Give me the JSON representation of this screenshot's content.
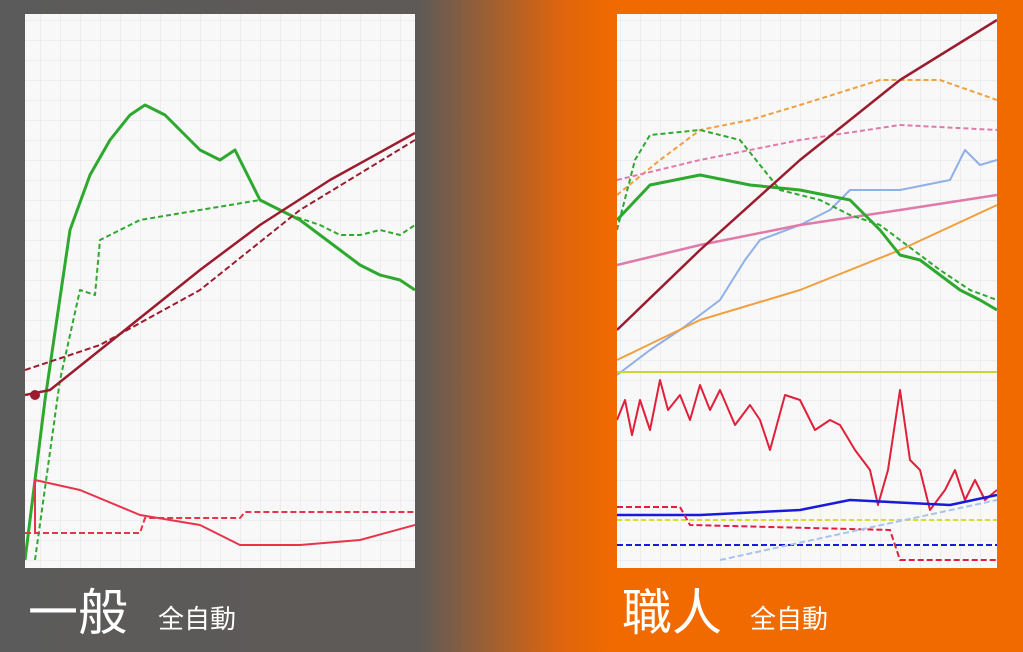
{
  "panels": [
    {
      "title": "一般",
      "subtitle": "全自動"
    },
    {
      "title": "職人",
      "subtitle": "全自動"
    }
  ]
}
